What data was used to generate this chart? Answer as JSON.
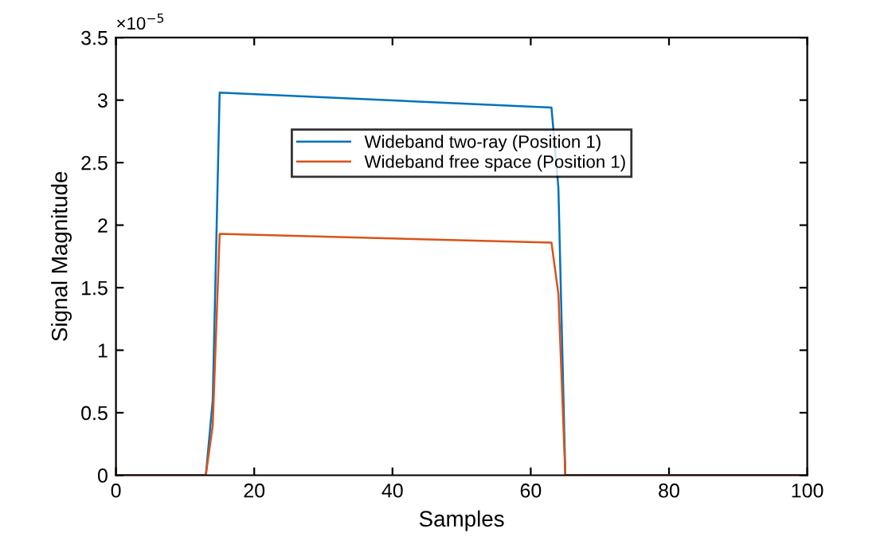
{
  "chart_data": {
    "type": "line",
    "xlabel": "Samples",
    "ylabel": "Signal Magnitude",
    "x": [
      0,
      13,
      14,
      15,
      63,
      64,
      65,
      100
    ],
    "series": [
      {
        "name": "Wideband two-ray (Position 1)",
        "color": "#0072bd",
        "values": [
          0,
          0,
          0.6,
          3.06,
          2.94,
          2.3,
          0,
          0
        ]
      },
      {
        "name": "Wideband free space (Position 1)",
        "color": "#d95319",
        "values": [
          0,
          0,
          0.4,
          1.93,
          1.86,
          1.45,
          0,
          0
        ]
      }
    ],
    "xlim": [
      0,
      100
    ],
    "xticks": [
      0,
      20,
      40,
      60,
      80,
      100
    ],
    "ylim": [
      0,
      3.5
    ],
    "yticks": [
      0,
      0.5,
      1,
      1.5,
      2,
      2.5,
      3,
      3.5
    ],
    "annotations": [
      "×10$^{−5}$"
    ],
    "legend": "top",
    "grid": false,
    "marker": "none",
    "line_style": "solid"
  }
}
